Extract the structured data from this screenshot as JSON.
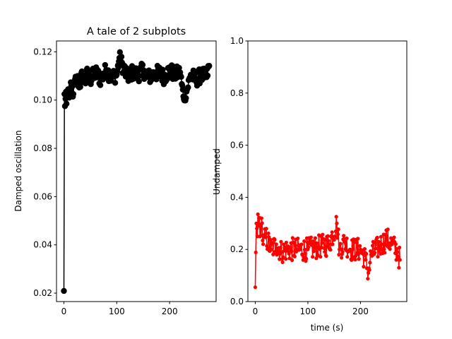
{
  "chart_data": [
    {
      "type": "line",
      "title": "A tale of 2 subplots",
      "xlabel": "",
      "ylabel": "Damped oscillation",
      "xlim": [
        -14,
        288
      ],
      "ylim": [
        0.0165,
        0.1245
      ],
      "xticks": [
        0,
        100,
        200
      ],
      "yticks": [
        0.02,
        0.04,
        0.06,
        0.08,
        0.1,
        0.12
      ],
      "ytick_labels": [
        "0.02",
        "0.04",
        "0.06",
        "0.08",
        "0.10",
        "0.12"
      ],
      "marker": "o",
      "color": "#000000",
      "x_range": [
        0,
        275
      ],
      "n_points": 276,
      "anchors": [
        [
          0,
          0.0209
        ],
        [
          1,
          0.1025
        ],
        [
          2,
          0.0975
        ],
        [
          3,
          0.1005
        ],
        [
          4,
          0.1035
        ],
        [
          5,
          0.0985
        ],
        [
          6,
          0.1015
        ],
        [
          8,
          0.1045
        ],
        [
          10,
          0.101
        ],
        [
          12,
          0.1035
        ],
        [
          15,
          0.1055
        ],
        [
          18,
          0.1025
        ],
        [
          20,
          0.107
        ],
        [
          25,
          0.1085
        ],
        [
          30,
          0.1065
        ],
        [
          35,
          0.1105
        ],
        [
          40,
          0.1075
        ],
        [
          45,
          0.1115
        ],
        [
          50,
          0.1085
        ],
        [
          60,
          0.1115
        ],
        [
          70,
          0.1085
        ],
        [
          80,
          0.1125
        ],
        [
          90,
          0.1095
        ],
        [
          100,
          0.1105
        ],
        [
          105,
          0.1175
        ],
        [
          120,
          0.1095
        ],
        [
          130,
          0.1115
        ],
        [
          140,
          0.1105
        ],
        [
          150,
          0.1125
        ],
        [
          160,
          0.1095
        ],
        [
          170,
          0.1105
        ],
        [
          180,
          0.1115
        ],
        [
          190,
          0.1095
        ],
        [
          200,
          0.1125
        ],
        [
          210,
          0.1105
        ],
        [
          220,
          0.1115
        ],
        [
          226,
          0.1015
        ],
        [
          232,
          0.1035
        ],
        [
          240,
          0.1105
        ],
        [
          250,
          0.1085
        ],
        [
          260,
          0.1105
        ],
        [
          270,
          0.1095
        ],
        [
          275,
          0.1142
        ]
      ],
      "noise": 0.0032
    },
    {
      "type": "line",
      "title": "",
      "xlabel": "time (s)",
      "ylabel": "Undamped",
      "xlim": [
        -14,
        288
      ],
      "ylim": [
        0.0,
        1.0
      ],
      "xticks": [
        0,
        100,
        200
      ],
      "yticks": [
        0.0,
        0.2,
        0.4,
        0.6,
        0.8,
        1.0
      ],
      "ytick_labels": [
        "0.0",
        "0.2",
        "0.4",
        "0.6",
        "0.8",
        "1.0"
      ],
      "marker": ".",
      "color": "#ff0000",
      "x_range": [
        0,
        275
      ],
      "n_points": 276,
      "anchors": [
        [
          0,
          0.055
        ],
        [
          2,
          0.3
        ],
        [
          4,
          0.25
        ],
        [
          5,
          0.335
        ],
        [
          7,
          0.32
        ],
        [
          9,
          0.25
        ],
        [
          12,
          0.32
        ],
        [
          15,
          0.22
        ],
        [
          20,
          0.25
        ],
        [
          30,
          0.2
        ],
        [
          40,
          0.22
        ],
        [
          50,
          0.19
        ],
        [
          60,
          0.2
        ],
        [
          80,
          0.2
        ],
        [
          100,
          0.2
        ],
        [
          120,
          0.21
        ],
        [
          140,
          0.22
        ],
        [
          155,
          0.3
        ],
        [
          160,
          0.2
        ],
        [
          170,
          0.23
        ],
        [
          180,
          0.2
        ],
        [
          200,
          0.2
        ],
        [
          210,
          0.16
        ],
        [
          215,
          0.11
        ],
        [
          220,
          0.18
        ],
        [
          240,
          0.22
        ],
        [
          250,
          0.24
        ],
        [
          260,
          0.22
        ],
        [
          270,
          0.19
        ],
        [
          275,
          0.16
        ]
      ],
      "noise": 0.045
    }
  ]
}
